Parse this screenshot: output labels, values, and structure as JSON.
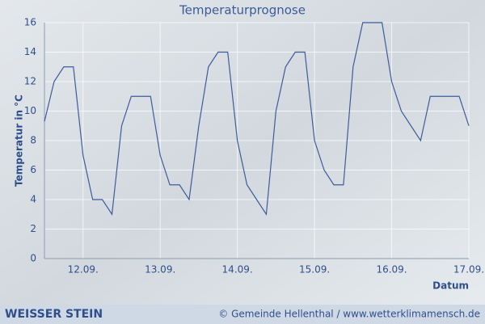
{
  "chart_data": {
    "type": "line",
    "title": "Temperaturprognose",
    "y_label": "Temperatur in °C",
    "x_label": "Datum",
    "footer_left": "WEISSER STEIN",
    "footer_right": "© Gemeinde Hellenthal / www.wetterklimamensch.de",
    "x": [
      11.5,
      11.625,
      11.75,
      11.875,
      12,
      12.125,
      12.25,
      12.375,
      12.5,
      12.625,
      12.75,
      12.875,
      13,
      13.125,
      13.25,
      13.375,
      13.5,
      13.625,
      13.75,
      13.875,
      14,
      14.125,
      14.25,
      14.375,
      14.5,
      14.625,
      14.75,
      14.875,
      15,
      15.125,
      15.25,
      15.375,
      15.5,
      15.625,
      15.75,
      15.875,
      16,
      16.125,
      16.25,
      16.375,
      16.5,
      16.625,
      16.75,
      16.875,
      17
    ],
    "series": [
      {
        "color": "#3d5c9c",
        "values": [
          9.3,
          12,
          13,
          13,
          7,
          4,
          4,
          3,
          9,
          11,
          11,
          11,
          7,
          5,
          5,
          4,
          9,
          13,
          14,
          14,
          8,
          5,
          4,
          3,
          10,
          13,
          14,
          14,
          8,
          6,
          5,
          5,
          13,
          16,
          16,
          16,
          12,
          10,
          9,
          8,
          11,
          11,
          11,
          11,
          9
        ]
      }
    ],
    "xlim": [
      11.5,
      17
    ],
    "xticks": [
      {
        "value": 12,
        "label": "12.09."
      },
      {
        "value": 13,
        "label": "13.09."
      },
      {
        "value": 14,
        "label": "14.09."
      },
      {
        "value": 15,
        "label": "15.09."
      },
      {
        "value": 16,
        "label": "16.09."
      },
      {
        "value": 17,
        "label": "17.09."
      }
    ],
    "ylim": [
      0,
      16
    ],
    "yticks": [
      0,
      2,
      4,
      6,
      8,
      10,
      12,
      14,
      16
    ],
    "grid": true
  }
}
